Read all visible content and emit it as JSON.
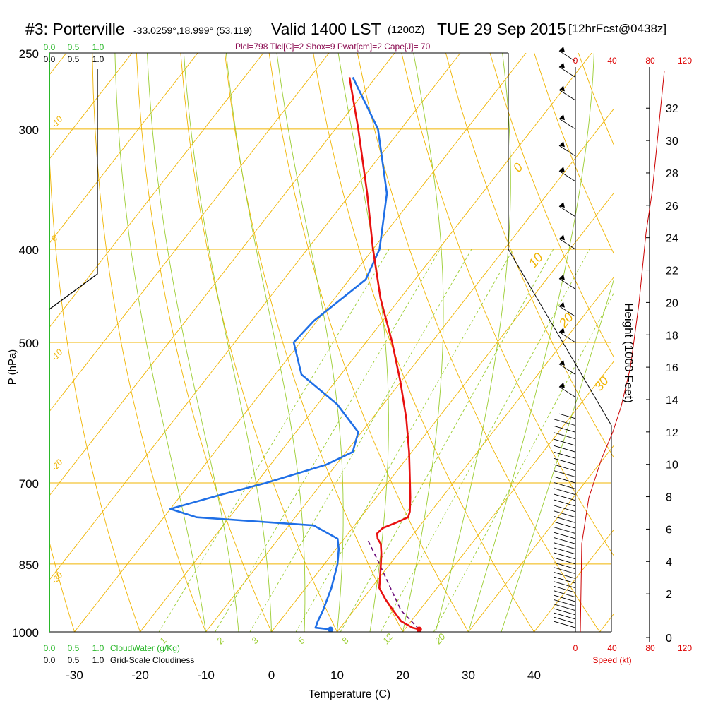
{
  "header": {
    "station": "#3: Porterville",
    "coords": "-33.0259°,18.999° (53,119)",
    "valid": "Valid 1400 LST",
    "valid_z": "(1200Z)",
    "date": "TUE 29 Sep 2015",
    "forecast": "[12hrFcst@0438z]",
    "indices": "Plcl=798 Tlcl[C]=2 Shox=9 Pwat[cm]=2 Cape[J]= 70"
  },
  "colors": {
    "temperature": "#e81010",
    "dewpoint": "#1f6fe6",
    "parcel": "#6a0a78",
    "isotherm": "#f0b400",
    "mixing_ratio": "#9bcd32",
    "cloud_water": "#2ab82a",
    "wind_scale": "#dd0000",
    "indices": "#8b0a50",
    "height_profile": "#cc0000"
  },
  "chart_data": {
    "type": "line",
    "title": "",
    "xlabel": "Temperature (C)",
    "ylabel": "P (hPa)",
    "x_ticks": [
      "-30",
      "-20",
      "-10",
      "0",
      "10",
      "20",
      "30",
      "40"
    ],
    "y_ticks": [
      "250",
      "300",
      "400",
      "500",
      "700",
      "850",
      "1000"
    ],
    "y_scale": "log",
    "ylim": [
      1000,
      250
    ],
    "xlim": [
      -34,
      36
    ],
    "series": [],
    "temperature_profile": [
      {
        "p": 994,
        "t": 22.2
      },
      {
        "p": 990,
        "t": 21.0
      },
      {
        "p": 975,
        "t": 18.5
      },
      {
        "p": 950,
        "t": 16.0
      },
      {
        "p": 925,
        "t": 13.5
      },
      {
        "p": 900,
        "t": 11.2
      },
      {
        "p": 850,
        "t": 8.6
      },
      {
        "p": 830,
        "t": 7.5
      },
      {
        "p": 810,
        "t": 6.2
      },
      {
        "p": 800,
        "t": 5.1
      },
      {
        "p": 790,
        "t": 4.4
      },
      {
        "p": 780,
        "t": 4.6
      },
      {
        "p": 770,
        "t": 6.0
      },
      {
        "p": 760,
        "t": 7.2
      },
      {
        "p": 750,
        "t": 6.8
      },
      {
        "p": 725,
        "t": 5.2
      },
      {
        "p": 700,
        "t": 3.4
      },
      {
        "p": 650,
        "t": -0.4
      },
      {
        "p": 600,
        "t": -4.8
      },
      {
        "p": 550,
        "t": -10.0
      },
      {
        "p": 500,
        "t": -16.0
      },
      {
        "p": 450,
        "t": -23.0
      },
      {
        "p": 400,
        "t": -30.0
      },
      {
        "p": 350,
        "t": -37.5
      },
      {
        "p": 300,
        "t": -46.5
      },
      {
        "p": 265,
        "t": -54.0
      }
    ],
    "dewpoint_profile": [
      {
        "p": 994,
        "t": 8.7
      },
      {
        "p": 990,
        "t": 6.2
      },
      {
        "p": 975,
        "t": 5.8
      },
      {
        "p": 950,
        "t": 5.3
      },
      {
        "p": 900,
        "t": 3.9
      },
      {
        "p": 850,
        "t": 2.0
      },
      {
        "p": 820,
        "t": 0.4
      },
      {
        "p": 800,
        "t": -1.0
      },
      {
        "p": 775,
        "t": -6.2
      },
      {
        "p": 760,
        "t": -25.0
      },
      {
        "p": 745,
        "t": -30.0
      },
      {
        "p": 720,
        "t": -24.0
      },
      {
        "p": 700,
        "t": -18.5
      },
      {
        "p": 670,
        "t": -11.5
      },
      {
        "p": 650,
        "t": -9.0
      },
      {
        "p": 620,
        "t": -10.5
      },
      {
        "p": 580,
        "t": -17.0
      },
      {
        "p": 540,
        "t": -26.0
      },
      {
        "p": 500,
        "t": -31.0
      },
      {
        "p": 475,
        "t": -30.5
      },
      {
        "p": 430,
        "t": -27.5
      },
      {
        "p": 400,
        "t": -29.0
      },
      {
        "p": 350,
        "t": -34.5
      },
      {
        "p": 300,
        "t": -43.5
      },
      {
        "p": 265,
        "t": -53.5
      }
    ],
    "parcel_profile": [
      {
        "p": 994,
        "t": 22.2
      },
      {
        "p": 950,
        "t": 17.2
      },
      {
        "p": 900,
        "t": 12.9
      },
      {
        "p": 850,
        "t": 8.4
      },
      {
        "p": 820,
        "t": 5.5
      },
      {
        "p": 800,
        "t": 3.5
      }
    ],
    "surface_temp": {
      "p": 994,
      "t": 22.2
    },
    "surface_dewpoint": {
      "p": 994,
      "t": 8.7
    },
    "isotherm_labels": [
      "-10",
      "0",
      "-10",
      "-20",
      "-30",
      "0",
      "10",
      "20",
      "30"
    ],
    "mixing_ratio_labels": [
      "1",
      "2",
      "3",
      "5",
      "8",
      "12",
      "20"
    ],
    "wind_speed_ticks": [
      "0",
      "40",
      "80",
      "120"
    ],
    "wind_speed_label": "Speed (kt)",
    "height_ticks": [
      "0",
      "2",
      "4",
      "6",
      "8",
      "10",
      "12",
      "14",
      "16",
      "18",
      "20",
      "22",
      "24",
      "26",
      "28",
      "30",
      "32"
    ],
    "height_label": "Height (1000 Feet)",
    "cloud_water_ticks": [
      "0.0",
      "0.5",
      "1.0"
    ],
    "cloud_water_label": "CloudWater (g/Kg)",
    "cloudiness_ticks": [
      "0.0",
      "0.5",
      "1.0"
    ],
    "cloudiness_label": "Grid-Scale Cloudiness"
  }
}
